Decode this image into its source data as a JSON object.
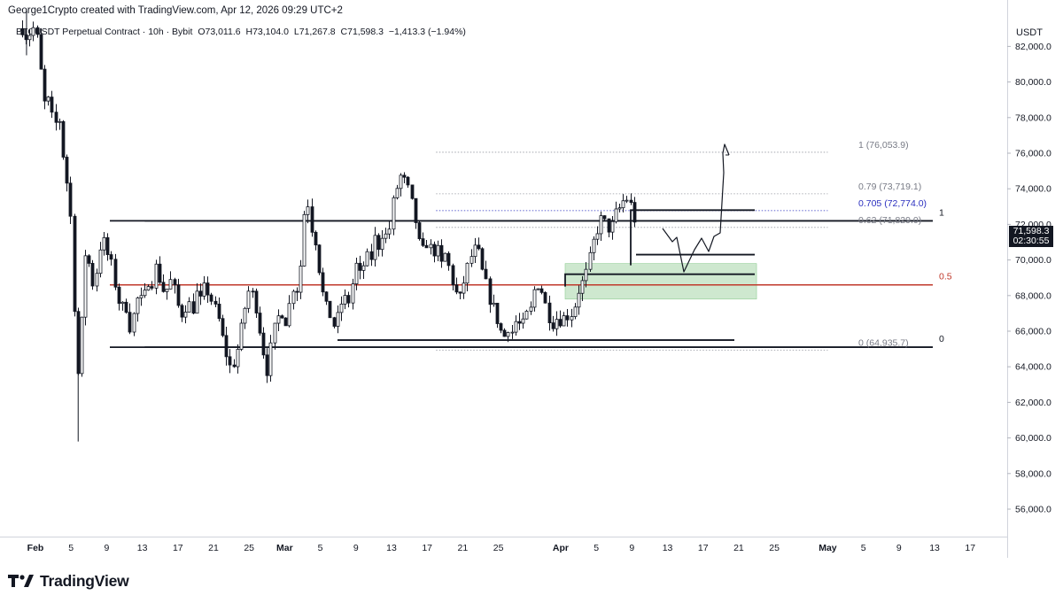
{
  "header": {
    "attribution": "George1Crypto created with TradingView.com, Apr 12, 2026 09:29 UTC+2",
    "symbol": "BTCUSDT Perpetual Contract · 10h · Bybit",
    "open": "O73,011.6",
    "high": "H73,104.0",
    "low": "L71,267.8",
    "close": "C71,598.3",
    "change": "−1,413.3 (−1.94%)"
  },
  "axis_unit": "USDT",
  "last_price": {
    "value": "71,598.3",
    "countdown": "02:30:55"
  },
  "logo_text": "TradingView",
  "colors": {
    "candle": "#131722",
    "grid": "#e0e3eb",
    "mid_line": "#c0392b",
    "zone_fill": "#a5d6a7",
    "fib_blue": "#2a2fbf",
    "fib_grey": "#787b86"
  },
  "chart_data": {
    "type": "candlestick",
    "y_ticks": [
      "82,000.0",
      "80,000.0",
      "78,000.0",
      "76,000.0",
      "74,000.0",
      "72,000.0",
      "70,000.0",
      "68,000.0",
      "66,000.0",
      "64,000.0",
      "62,000.0",
      "60,000.0",
      "58,000.0",
      "56,000.0"
    ],
    "y_tick_values": [
      82000,
      80000,
      78000,
      76000,
      74000,
      72000,
      70000,
      68000,
      66000,
      64000,
      62000,
      60000,
      58000,
      56000
    ],
    "x_ticks": [
      {
        "label": "Feb",
        "day": 0,
        "bold": true
      },
      {
        "label": "5",
        "day": 4
      },
      {
        "label": "9",
        "day": 8
      },
      {
        "label": "13",
        "day": 12
      },
      {
        "label": "17",
        "day": 16
      },
      {
        "label": "21",
        "day": 20
      },
      {
        "label": "25",
        "day": 24
      },
      {
        "label": "Mar",
        "day": 28,
        "bold": true
      },
      {
        "label": "5",
        "day": 32
      },
      {
        "label": "9",
        "day": 36
      },
      {
        "label": "13",
        "day": 40
      },
      {
        "label": "17",
        "day": 44
      },
      {
        "label": "21",
        "day": 48
      },
      {
        "label": "25",
        "day": 52
      },
      {
        "label": "Apr",
        "day": 59,
        "bold": true
      },
      {
        "label": "5",
        "day": 63
      },
      {
        "label": "9",
        "day": 67
      },
      {
        "label": "13",
        "day": 71
      },
      {
        "label": "17",
        "day": 75
      },
      {
        "label": "21",
        "day": 79
      },
      {
        "label": "25",
        "day": 83
      },
      {
        "label": "May",
        "day": 89,
        "bold": true
      },
      {
        "label": "5",
        "day": 93
      },
      {
        "label": "9",
        "day": 97
      },
      {
        "label": "13",
        "day": 101
      },
      {
        "label": "17",
        "day": 105
      }
    ],
    "close_path": [
      [
        -1.5,
        83000
      ],
      [
        -1,
        82500
      ],
      [
        0,
        83200
      ],
      [
        0.6,
        80500
      ],
      [
        1,
        78800
      ],
      [
        1.6,
        79000
      ],
      [
        2,
        77300
      ],
      [
        2.6,
        78200
      ],
      [
        3,
        76200
      ],
      [
        3.6,
        74000
      ],
      [
        4,
        72000
      ],
      [
        4.4,
        66500
      ],
      [
        4.8,
        63200
      ],
      [
        5.2,
        66800
      ],
      [
        5.6,
        70500
      ],
      [
        6,
        69800
      ],
      [
        6.6,
        68200
      ],
      [
        7,
        70200
      ],
      [
        7.5,
        71300
      ],
      [
        8,
        70400
      ],
      [
        8.6,
        69600
      ],
      [
        9,
        68400
      ],
      [
        9.6,
        67100
      ],
      [
        10,
        67800
      ],
      [
        10.6,
        66200
      ],
      [
        11,
        66900
      ],
      [
        11.6,
        68200
      ],
      [
        12,
        67400
      ],
      [
        12.6,
        68900
      ],
      [
        13,
        68600
      ],
      [
        13.6,
        69800
      ],
      [
        14,
        68700
      ],
      [
        14.6,
        68000
      ],
      [
        15,
        69000
      ],
      [
        15.6,
        68300
      ],
      [
        16,
        67400
      ],
      [
        16.6,
        66800
      ],
      [
        17,
        67800
      ],
      [
        17.6,
        67100
      ],
      [
        18,
        68200
      ],
      [
        18.6,
        67600
      ],
      [
        19,
        68600
      ],
      [
        19.6,
        67900
      ],
      [
        20,
        67500
      ],
      [
        20.6,
        66600
      ],
      [
        21,
        65600
      ],
      [
        21.6,
        64300
      ],
      [
        22,
        63800
      ],
      [
        22.6,
        64800
      ],
      [
        23,
        65900
      ],
      [
        23.6,
        67600
      ],
      [
        24,
        68400
      ],
      [
        24.6,
        67800
      ],
      [
        25,
        66600
      ],
      [
        25.6,
        64800
      ],
      [
        26,
        63800
      ],
      [
        26.6,
        65600
      ],
      [
        27,
        66500
      ],
      [
        27.6,
        67200
      ],
      [
        28,
        66400
      ],
      [
        28.6,
        67700
      ],
      [
        29,
        68700
      ],
      [
        29.6,
        68100
      ],
      [
        30,
        72400
      ],
      [
        30.6,
        73200
      ],
      [
        31,
        71800
      ],
      [
        31.6,
        70800
      ],
      [
        32,
        68600
      ],
      [
        32.6,
        67400
      ],
      [
        33,
        67000
      ],
      [
        33.6,
        66200
      ],
      [
        34,
        66900
      ],
      [
        34.6,
        68100
      ],
      [
        35,
        67300
      ],
      [
        35.6,
        68700
      ],
      [
        36,
        69700
      ],
      [
        36.6,
        68900
      ],
      [
        37,
        70300
      ],
      [
        37.6,
        69900
      ],
      [
        38,
        71300
      ],
      [
        38.6,
        70700
      ],
      [
        39,
        71700
      ],
      [
        39.6,
        71100
      ],
      [
        40,
        72900
      ],
      [
        40.6,
        74100
      ],
      [
        41,
        74700
      ],
      [
        41.6,
        74300
      ],
      [
        42,
        73700
      ],
      [
        42.6,
        72400
      ],
      [
        43,
        71000
      ],
      [
        43.6,
        70400
      ],
      [
        44,
        71100
      ],
      [
        44.6,
        70300
      ],
      [
        45,
        70800
      ],
      [
        45.6,
        69700
      ],
      [
        46,
        70300
      ],
      [
        46.6,
        69300
      ],
      [
        47,
        68400
      ],
      [
        47.6,
        67700
      ],
      [
        48,
        68600
      ],
      [
        48.6,
        69800
      ],
      [
        49,
        70300
      ],
      [
        49.6,
        70800
      ],
      [
        50,
        69600
      ],
      [
        50.6,
        68600
      ],
      [
        51,
        67800
      ],
      [
        51.6,
        67100
      ],
      [
        52,
        66300
      ],
      [
        52.6,
        65600
      ],
      [
        53,
        66300
      ],
      [
        53.6,
        65900
      ],
      [
        54,
        66700
      ],
      [
        54.6,
        66100
      ],
      [
        55,
        66800
      ],
      [
        55.6,
        67200
      ],
      [
        56,
        68300
      ],
      [
        56.6,
        68800
      ],
      [
        57,
        67900
      ],
      [
        57.6,
        66900
      ],
      [
        58,
        66400
      ],
      [
        58.6,
        66800
      ],
      [
        59,
        66600
      ],
      [
        59.6,
        66900
      ],
      [
        60,
        66800
      ],
      [
        60.6,
        67500
      ],
      [
        61,
        68300
      ],
      [
        61.6,
        68900
      ],
      [
        62,
        69500
      ],
      [
        62.6,
        70900
      ],
      [
        63,
        71600
      ],
      [
        63.6,
        72400
      ],
      [
        64,
        72000
      ],
      [
        64.6,
        71600
      ],
      [
        65,
        72500
      ],
      [
        65.6,
        72900
      ],
      [
        66,
        73300
      ],
      [
        66.6,
        73500
      ],
      [
        67,
        72800
      ],
      [
        67.6,
        71598
      ]
    ],
    "projection_path": [
      [
        67.6,
        71500
      ],
      [
        68.6,
        70200
      ],
      [
        69.4,
        70700
      ],
      [
        70.1,
        69300
      ],
      [
        71.0,
        70700
      ],
      [
        71.8,
        70400
      ],
      [
        72.5,
        70000
      ],
      [
        73.4,
        71500
      ],
      [
        74.2,
        76200
      ],
      [
        74.6,
        76500
      ],
      [
        75.1,
        76000
      ]
    ],
    "levels": {
      "range_top": {
        "price": 72200,
        "x1": 7.3,
        "x2": 79,
        "label": "1"
      },
      "range_mid": {
        "price": 68600,
        "x1": 7.3,
        "x2": 79,
        "label": "0.5"
      },
      "range_bottom": {
        "price": 65100,
        "x1": 7.3,
        "x2": 79,
        "label": "0"
      },
      "support": {
        "price": 65500,
        "x1": 32,
        "x2": 75.5
      },
      "box_upper": {
        "top": 72800,
        "bottom": 70300,
        "x1": 66,
        "x2": 78
      },
      "box_lower": {
        "price": 69200,
        "x1": 59,
        "x2": 78
      },
      "zone": {
        "top": 69800,
        "bottom": 67800,
        "x1": 59.5,
        "x2": 81
      },
      "fib": [
        {
          "label": "1 (76,053.9)",
          "price": 76053.9
        },
        {
          "label": "0.79 (73,719.1)",
          "price": 73719.1
        },
        {
          "label": "0.705 (72,774.0)",
          "price": 72774.0,
          "blue": true
        },
        {
          "label": "0.62 (71,829.0)",
          "price": 71829.0
        },
        {
          "label": "0 (64,935.7)",
          "price": 64935.7
        }
      ],
      "fib_x1": 45,
      "fib_x2": 89
    }
  }
}
